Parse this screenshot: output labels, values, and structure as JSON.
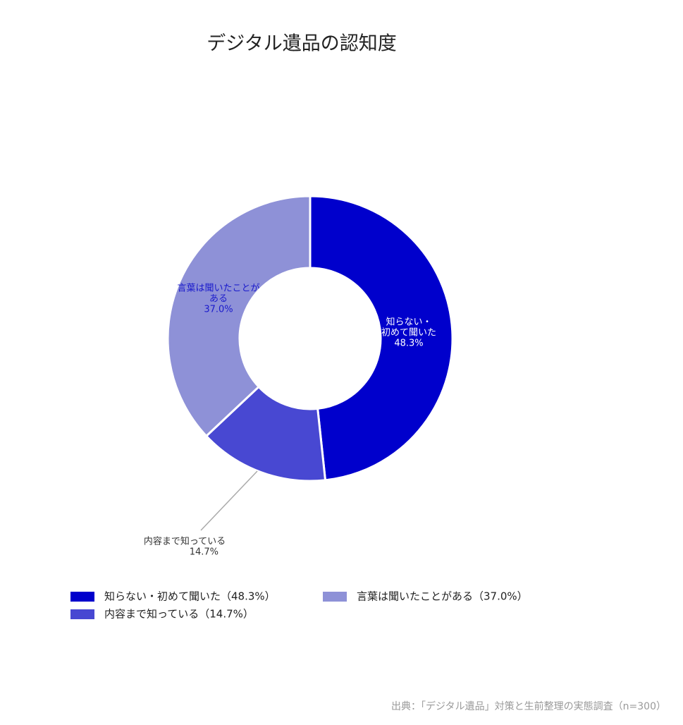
{
  "chart_data": {
    "type": "donut",
    "title": "デジタル遺品の認知度",
    "categories": [
      "知らない・初めて聞いた",
      "内容まで知っている",
      "言葉は聞いたことがある"
    ],
    "slice_label_lines": [
      [
        "知らない・",
        "初めて聞いた"
      ],
      [
        "内容まで知っている"
      ],
      [
        "言葉は聞いたことが",
        "ある"
      ]
    ],
    "values": [
      48.3,
      14.7,
      37.0
    ],
    "value_labels": [
      "48.3%",
      "14.7%",
      "37.0%"
    ],
    "colors": [
      "#0000cc",
      "#4848d2",
      "#8e91d7"
    ],
    "legend_labels": [
      "知らない・初めて聞いた（48.3%）",
      "内容まで知っている（14.7%）",
      "言葉は聞いたことがある（37.0%）"
    ],
    "source": "出典：「デジタル遺品」対策と生前整理の実態調査（n=300）"
  }
}
